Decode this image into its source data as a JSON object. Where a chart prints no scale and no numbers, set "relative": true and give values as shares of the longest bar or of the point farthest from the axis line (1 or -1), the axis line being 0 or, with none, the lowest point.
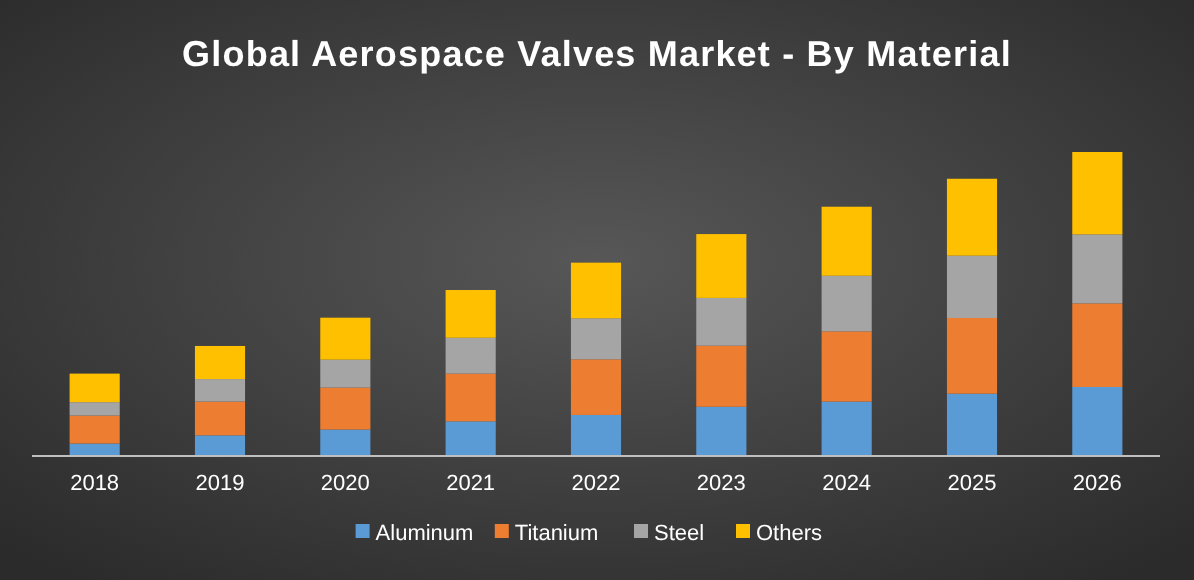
{
  "chart_data": {
    "type": "bar",
    "title": "Global Aerospace Valves Market - By Material",
    "stacked": true,
    "relative": true,
    "legend": "bottom",
    "categories": [
      "2018",
      "2019",
      "2020",
      "2021",
      "2022",
      "2023",
      "2024",
      "2025",
      "2026"
    ],
    "series": [
      {
        "name": "Aluminum",
        "color": "#5b9bd5",
        "values": [
          0.041,
          0.068,
          0.087,
          0.114,
          0.135,
          0.162,
          0.179,
          0.205,
          0.227
        ]
      },
      {
        "name": "Titanium",
        "color": "#ed7d31",
        "values": [
          0.092,
          0.111,
          0.138,
          0.157,
          0.183,
          0.201,
          0.231,
          0.249,
          0.275
        ]
      },
      {
        "name": "Steel",
        "color": "#a5a5a5",
        "values": [
          0.044,
          0.074,
          0.092,
          0.118,
          0.135,
          0.157,
          0.183,
          0.205,
          0.227
        ]
      },
      {
        "name": "Others",
        "color": "#ffc000",
        "values": [
          0.094,
          0.109,
          0.138,
          0.157,
          0.183,
          0.21,
          0.227,
          0.253,
          0.271
        ]
      }
    ]
  }
}
